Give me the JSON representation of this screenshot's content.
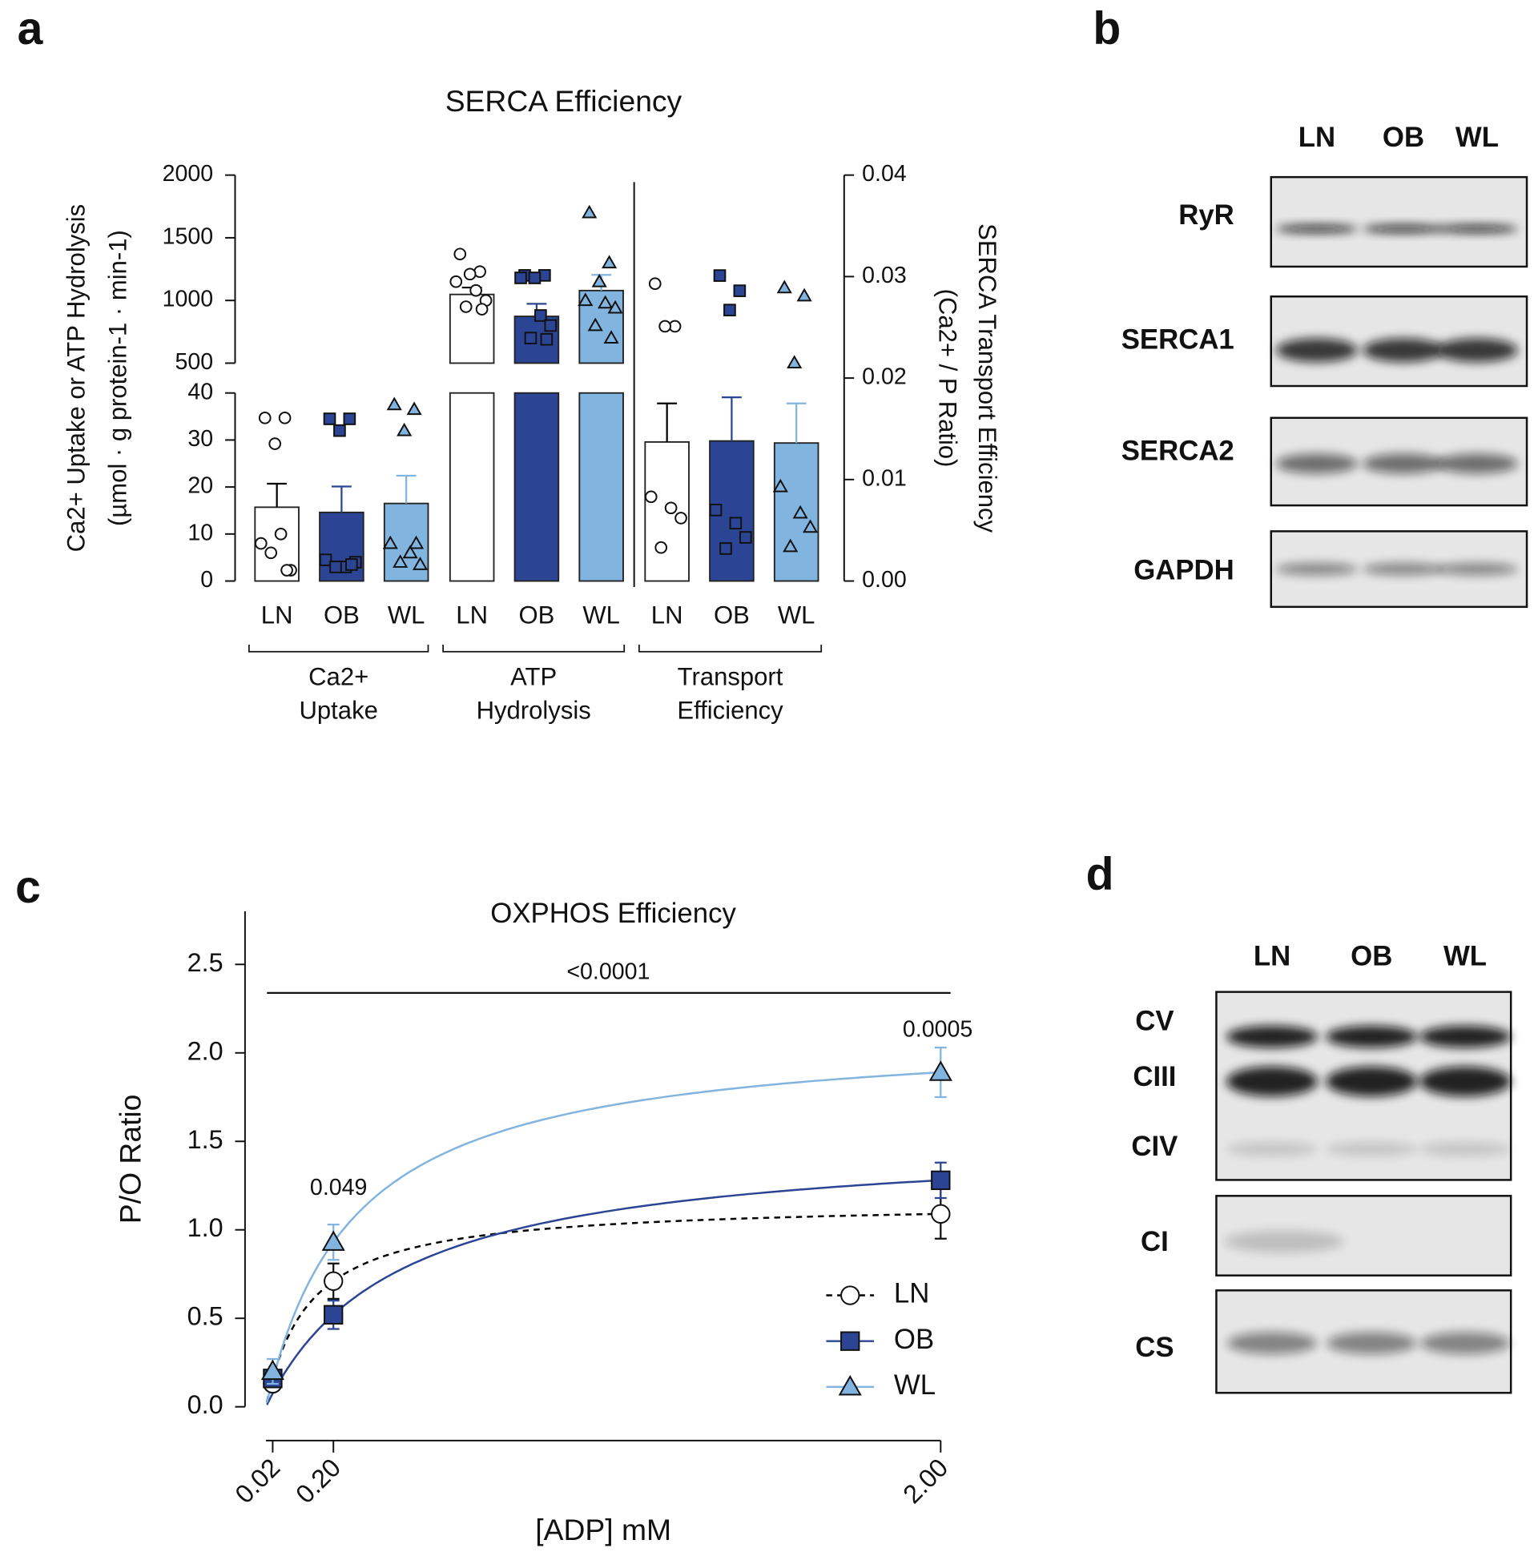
{
  "panel_labels": [
    "a",
    "b",
    "c",
    "d"
  ],
  "chart_data": [
    {
      "type": "bar",
      "title": "SERCA Efficiency",
      "ylabel": [
        "Ca2+ Uptake or ATP Hydrolysis",
        "(µmol · g protein-1 · min-1)"
      ],
      "y2label": [
        "SERCA Transport Efficiency",
        "(Ca2+ / P Ratio)"
      ],
      "y_segments": [
        {
          "ylim": [
            0,
            40
          ],
          "yticks": [
            0,
            10,
            20,
            30,
            40
          ]
        },
        {
          "ylim": [
            500,
            2000
          ],
          "yticks": [
            500,
            1000,
            1500,
            2000
          ]
        }
      ],
      "y2lim": [
        0,
        0.04
      ],
      "y2ticks": [
        {
          "value": 0,
          "label": "0.00"
        },
        0.01,
        0.02,
        0.03,
        0.04
      ],
      "colors": [
        "#ffffff",
        "#2b4594",
        "#82b4e0"
      ],
      "error_colors": [
        "#000000",
        "#2b4594",
        "#82b4e0"
      ],
      "markers": [
        "circle",
        "square",
        "triangle"
      ],
      "groups": [
        {
          "label": [
            "Ca2+",
            "Uptake"
          ],
          "axis": "y",
          "categories": [
            "LN",
            "OB",
            "WL"
          ],
          "values": [
            15.7,
            14.6,
            16.5
          ],
          "errors": [
            5.0,
            5.5,
            5.9
          ],
          "points": [
            [
              34.7,
              34.7,
              29.2,
              8,
              10,
              2.3,
              6,
              2.3
            ],
            [
              34.5,
              34.5,
              32,
              4.5,
              3,
              4,
              3,
              3.5
            ],
            [
              37.5,
              36.5,
              32,
              8,
              6,
              3.5,
              4,
              8
            ]
          ]
        },
        {
          "label": [
            "ATP",
            "Hydrolysis"
          ],
          "axis": "y",
          "categories": [
            "LN",
            "OB",
            "WL"
          ],
          "values": [
            1048,
            873,
            1079
          ],
          "errors": [
            55,
            100,
            125
          ],
          "points": [
            [
              1370,
              1230,
              1210,
              1150,
              1080,
              1000,
              950,
              930
            ],
            [
              1200,
              1200,
              1180,
              1180,
              880,
              800,
              700,
              690
            ],
            [
              1700,
              1300,
              1150,
              1000,
              980,
              940,
              800,
              700
            ]
          ]
        },
        {
          "label": [
            "Transport",
            "Efficiency"
          ],
          "axis": "y2",
          "categories": [
            "LN",
            "OB",
            "WL"
          ],
          "values": [
            0.0137,
            0.0138,
            0.0136
          ],
          "errors": [
            0.0038,
            0.0043,
            0.0039
          ],
          "points": [
            [
              0.0293,
              0.0251,
              0.0251,
              0.0083,
              0.0072,
              0.0062,
              0.0033
            ],
            [
              0.0301,
              0.0286,
              0.0267,
              0.007,
              0.0057,
              0.0043,
              0.0032
            ],
            [
              0.0289,
              0.0281,
              0.0215,
              0.0093,
              0.0067,
              0.0053,
              0.0034
            ]
          ]
        }
      ]
    },
    {
      "type": "line",
      "title": "OXPHOS Efficiency",
      "xlabel": "[ADP] mM",
      "ylabel": "P/O Ratio",
      "x": [
        0.02,
        0.2,
        2
      ],
      "xlim": [
        0,
        2
      ],
      "xticks": [
        {
          "value": 0.02,
          "label": "0.02"
        },
        {
          "value": 0.2,
          "label": "0.20"
        },
        {
          "value": 2,
          "label": "2.00"
        }
      ],
      "ylim": [
        0,
        2.8
      ],
      "yticks": [
        {
          "value": 0,
          "label": "0.0"
        },
        0.5,
        {
          "value": 1,
          "label": "1.0"
        },
        1.5,
        {
          "value": 2,
          "label": "2.0"
        },
        2.5
      ],
      "legend": "lower right",
      "series": [
        {
          "name": "LN",
          "color": "#000000",
          "fill": "#ffffff",
          "marker": "circle",
          "dashed": true,
          "values": [
            0.13,
            0.71,
            1.09
          ],
          "errors": [
            0.03,
            0.1,
            0.14
          ]
        },
        {
          "name": "OB",
          "color": "#2b4594",
          "fill": "#2b4594",
          "marker": "square",
          "dashed": false,
          "values": [
            0.16,
            0.52,
            1.28
          ],
          "errors": [
            0.04,
            0.08,
            0.1
          ]
        },
        {
          "name": "WL",
          "color": "#82b4e0",
          "fill": "#82b4e0",
          "marker": "triangle",
          "dashed": false,
          "values": [
            0.2,
            0.93,
            1.89
          ],
          "errors": [
            0.07,
            0.1,
            0.14
          ]
        }
      ],
      "annotations": [
        {
          "text": "<0.0001"
        },
        {
          "text": "0.0005"
        },
        {
          "text": "0.049"
        }
      ]
    }
  ],
  "blot_b": {
    "lanes": [
      "LN",
      "OB",
      "WL"
    ],
    "rows": [
      "RyR",
      "SERCA1",
      "SERCA2",
      "GAPDH"
    ]
  },
  "blot_d": {
    "lanes": [
      "LN",
      "OB",
      "WL"
    ],
    "rows": [
      "CV",
      "CIII",
      "CIV",
      "CI",
      "CS"
    ]
  }
}
